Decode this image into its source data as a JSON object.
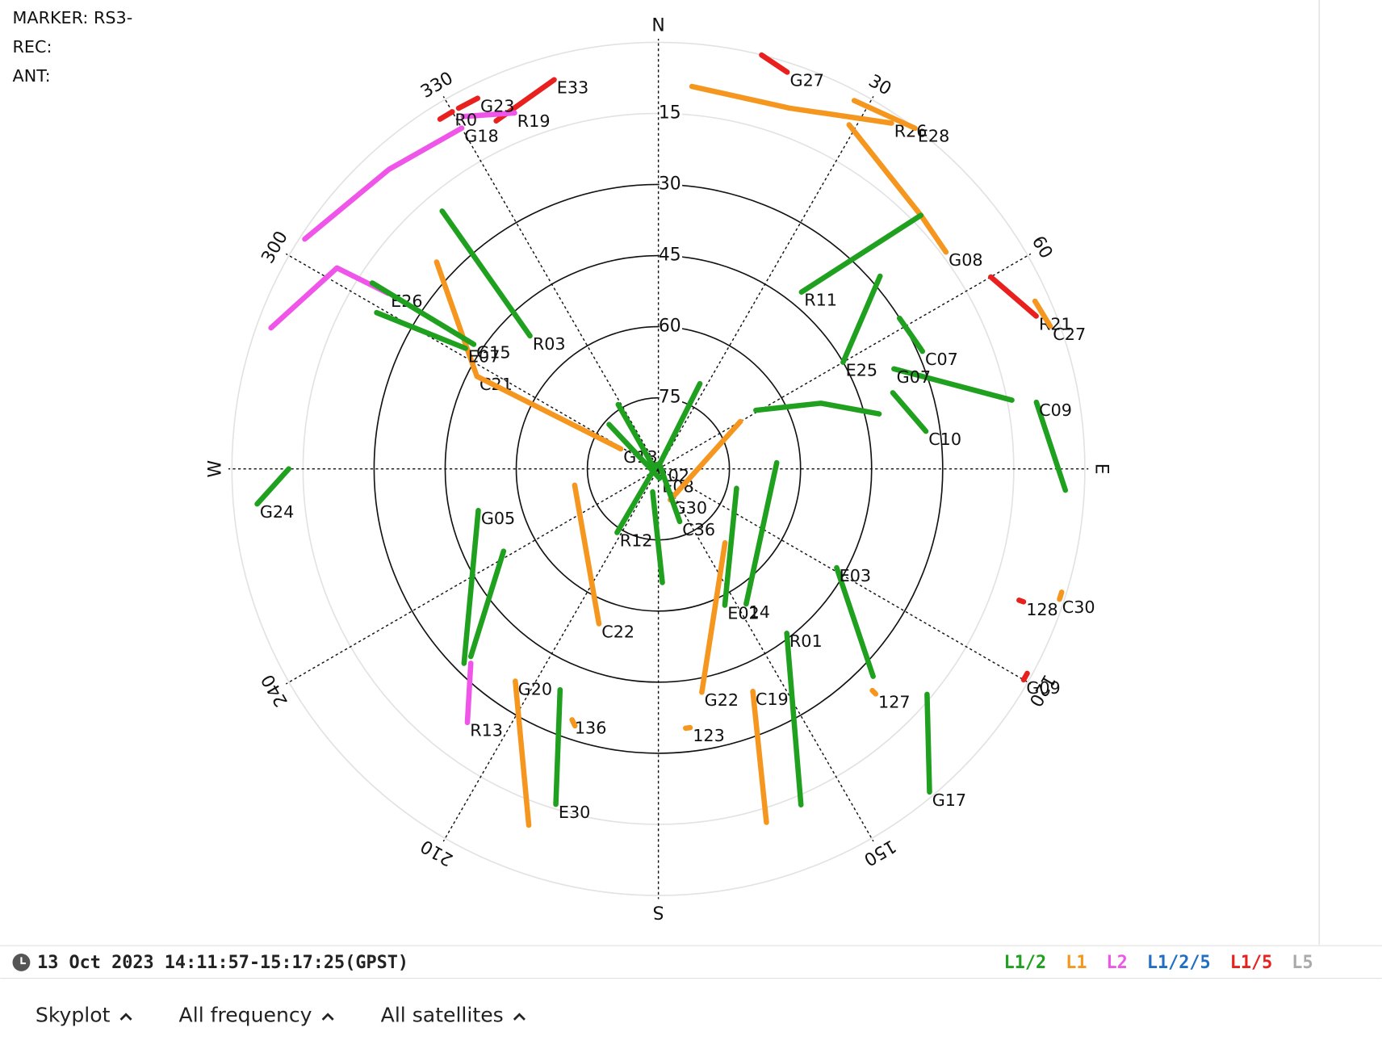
{
  "header": {
    "marker": "MARKER: RS3-",
    "rec": "REC:",
    "ant": "ANT:"
  },
  "chart_data": {
    "type": "skyplot",
    "rlim": [
      90,
      0
    ],
    "elevation_ticks": [
      15,
      30,
      45,
      60,
      75
    ],
    "azimuth_ticks": [
      {
        "value": 0,
        "label": "N"
      },
      30,
      60,
      {
        "value": 90,
        "label": "E"
      },
      120,
      150,
      {
        "value": 180,
        "label": "S"
      },
      210,
      240,
      {
        "value": 270,
        "label": "W"
      },
      300,
      330
    ],
    "legend": [
      {
        "name": "L1/2",
        "color": "#1fa01f"
      },
      {
        "name": "L1",
        "color": "#f5961e"
      },
      {
        "name": "L2",
        "color": "#ee55e8"
      },
      {
        "name": "L1/2/5",
        "color": "#1f6fc4"
      },
      {
        "name": "L1/5",
        "color": "#e8201e"
      },
      {
        "name": "L5",
        "color": "#aaaaaa"
      }
    ],
    "satellites": [
      {
        "name": "G27",
        "color": "#e8201e",
        "az": [
          14,
          18
        ],
        "el": [
          0,
          2
        ]
      },
      {
        "name": "E33",
        "color": "#e8201e",
        "az": [
          335,
          345
        ],
        "el": [
          9,
          5
        ]
      },
      {
        "name": "R19",
        "color": "#ee55e8",
        "az": [
          331,
          338
        ],
        "el": [
          5,
          9
        ]
      },
      {
        "name": "G23",
        "color": "#e8201e",
        "az": [
          331,
          334
        ],
        "el": [
          3,
          3
        ]
      },
      {
        "name": "R0",
        "color": "#e8201e",
        "az": [
          328,
          330
        ],
        "el": [
          3,
          3
        ]
      },
      {
        "name": "G18",
        "color": "#ee55e8",
        "az": [
          303,
          318,
          330
        ],
        "el": [
          1,
          5,
          7
        ]
      },
      {
        "name": "R26",
        "color": "#f5961e",
        "az": [
          5,
          20,
          34
        ],
        "el": [
          9,
          9,
          2
        ]
      },
      {
        "name": "E28",
        "color": "#f5961e",
        "az": [
          28,
          37
        ],
        "el": [
          2,
          0
        ]
      },
      {
        "name": "G08",
        "color": "#f5961e",
        "az": [
          29,
          46,
          53
        ],
        "el": [
          7,
          13,
          14
        ]
      },
      {
        "name": "R03",
        "color": "#1fa01f",
        "az": [
          320,
          316
        ],
        "el": [
          19,
          51
        ]
      },
      {
        "name": "C21",
        "color": "#f5961e",
        "az": [
          313,
          297
        ],
        "el": [
          26,
          47
        ]
      },
      {
        "name": "E26",
        "color": "#ee55e8",
        "az": [
          290,
          302,
          303
        ],
        "el": [
          3,
          10,
          22
        ]
      },
      {
        "name": "G15",
        "color": "#1fa01f",
        "az": [
          303,
          304
        ],
        "el": [
          18,
          43
        ]
      },
      {
        "name": "E07",
        "color": "#1fa01f",
        "az": [
          299,
          302
        ],
        "el": [
          22,
          42
        ]
      },
      {
        "name": "G13",
        "color": "#f5961e",
        "az": [
          297,
          298
        ],
        "el": [
          47,
          81
        ]
      },
      {
        "name": "R02",
        "color": "#1fa01f",
        "az": [
          328,
          286
        ],
        "el": [
          74,
          89
        ]
      },
      {
        "name": "E08",
        "color": "#1fa01f",
        "az": [
          312,
          173
        ],
        "el": [
          76,
          88
        ]
      },
      {
        "name": "G30",
        "color": "#f5961e",
        "az": [
          60,
          159
        ],
        "el": [
          70,
          83
        ]
      },
      {
        "name": null,
        "color": "#1fa01f",
        "az": [
          59,
          68,
          76
        ],
        "el": [
          66,
          53,
          42
        ]
      },
      {
        "name": "C22",
        "color": "#f5961e",
        "az": [
          259,
          201
        ],
        "el": [
          72,
          55
        ]
      },
      {
        "name": "C36",
        "color": "#1fa01f",
        "az": [
          26,
          14,
          158
        ],
        "el": [
          70,
          89,
          78
        ]
      },
      {
        "name": "R12",
        "color": "#1fa01f",
        "az": [
          344,
          213
        ],
        "el": [
          89,
          74
        ]
      },
      {
        "name": null,
        "color": "#1fa01f",
        "az": [
          194,
          178
        ],
        "el": [
          85,
          66
        ]
      },
      {
        "name": "G05",
        "color": "#1fa01f",
        "az": [
          225,
          257
        ],
        "el": [
          32,
          51
        ]
      },
      {
        "name": null,
        "color": "#1fa01f",
        "az": [
          242,
          225
        ],
        "el": [
          53,
          34
        ]
      },
      {
        "name": "R13",
        "color": "#ee55e8",
        "az": [
          224,
          217
        ],
        "el": [
          33,
          23
        ]
      },
      {
        "name": "G20",
        "color": "#f5961e",
        "az": [
          200,
          214
        ],
        "el": [
          10,
          36
        ]
      },
      {
        "name": "E30",
        "color": "#1fa01f",
        "az": [
          204,
          197
        ],
        "el": [
          39,
          16
        ]
      },
      {
        "name": "136",
        "color": "#f5961e",
        "az": [
          198,
          199
        ],
        "el": [
          33,
          34
        ]
      },
      {
        "name": "123",
        "color": "#f5961e",
        "az": [
          174,
          173
        ],
        "el": [
          35,
          35
        ]
      },
      {
        "name": "G22",
        "color": "#f5961e",
        "az": [
          138,
          169
        ],
        "el": [
          69,
          42
        ]
      },
      {
        "name": "E02",
        "color": "#1fa01f",
        "az": [
          104,
          154
        ],
        "el": [
          73,
          58
        ]
      },
      {
        "name": "14",
        "color": "#1fa01f",
        "az": [
          87,
          147
        ],
        "el": [
          65,
          56
        ]
      },
      {
        "name": "R01",
        "color": "#1fa01f",
        "az": [
          157,
          142
        ],
        "el": [
          13,
          46
        ]
      },
      {
        "name": "C19",
        "color": "#f5961e",
        "az": [
          163,
          157
        ],
        "el": [
          12,
          39
        ]
      },
      {
        "name": "E03",
        "color": "#1fa01f",
        "az": [
          134,
          119
        ],
        "el": [
          27,
          47
        ]
      },
      {
        "name": "127",
        "color": "#f5961e",
        "az": [
          136,
          136
        ],
        "el": [
          25,
          24
        ]
      },
      {
        "name": "G17",
        "color": "#1fa01f",
        "az": [
          130,
          140
        ],
        "el": [
          16,
          1
        ]
      },
      {
        "name": "G09",
        "color": "#e8201e",
        "az": [
          119,
          120
        ],
        "el": [
          1,
          1
        ]
      },
      {
        "name": "128",
        "color": "#e8201e",
        "az": [
          110,
          110
        ],
        "el": [
          9,
          8
        ]
      },
      {
        "name": "C30",
        "color": "#f5961e",
        "az": [
          107,
          108
        ],
        "el": [
          1,
          1
        ]
      },
      {
        "name": "C09",
        "color": "#1fa01f",
        "az": [
          93,
          80
        ],
        "el": [
          4,
          9
        ]
      },
      {
        "name": "R21",
        "color": "#e8201e",
        "az": [
          60,
          68
        ],
        "el": [
          9,
          4
        ]
      },
      {
        "name": "C27",
        "color": "#f5961e",
        "az": [
          66,
          70
        ],
        "el": [
          3,
          2
        ]
      },
      {
        "name": "C07",
        "color": "#1fa01f",
        "az": [
          58,
          66
        ],
        "el": [
          30,
          29
        ]
      },
      {
        "name": "G07",
        "color": "#1fa01f",
        "az": [
          79,
          67
        ],
        "el": [
          14,
          36
        ]
      },
      {
        "name": "C10",
        "color": "#1fa01f",
        "az": [
          72,
          82
        ],
        "el": [
          38,
          33
        ]
      },
      {
        "name": "E25",
        "color": "#1fa01f",
        "az": [
          49,
          60
        ],
        "el": [
          28,
          45
        ]
      },
      {
        "name": "R11",
        "color": "#1fa01f",
        "az": [
          46,
          39
        ],
        "el": [
          13,
          42
        ]
      },
      {
        "name": "G24",
        "color": "#1fa01f",
        "az": [
          270,
          265
        ],
        "el": [
          12,
          5
        ]
      }
    ]
  },
  "footer": {
    "time_range": "13 Oct 2023 14:11:57-15:17:25(GPST)"
  },
  "controls": [
    "Skyplot",
    "All frequency",
    "All satellites"
  ]
}
